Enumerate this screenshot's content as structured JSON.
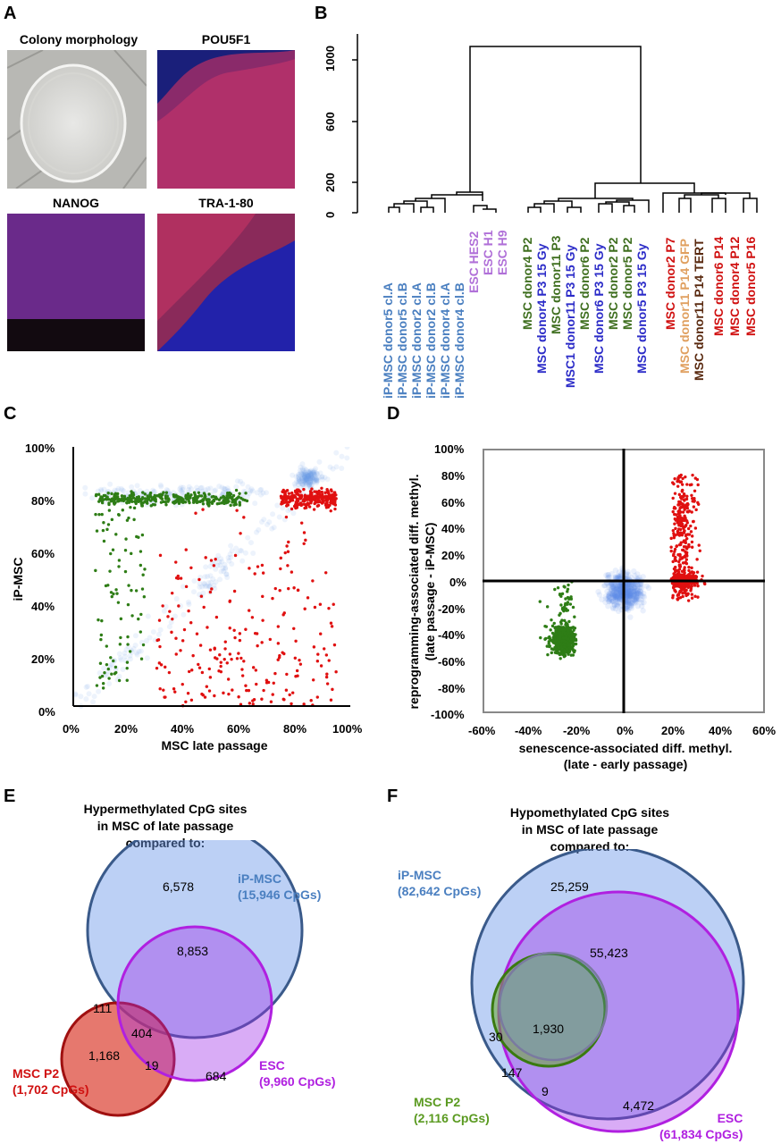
{
  "panels": {
    "A": "A",
    "B": "B",
    "C": "C",
    "D": "D",
    "E": "E",
    "F": "F"
  },
  "panel_a": {
    "titles": [
      "Colony morphology",
      "POU5F1",
      "NANOG",
      "TRA-1-80"
    ]
  },
  "panel_b": {
    "y_ticks": [
      "1000",
      "600",
      "200",
      "0"
    ],
    "leaves": [
      {
        "label": "iP-MSC donor5 cl.A",
        "color": "#4a7fc0"
      },
      {
        "label": "iP-MSC donor5 cl.B",
        "color": "#4a7fc0"
      },
      {
        "label": "iP-MSC donor2 cl.A",
        "color": "#4a7fc0"
      },
      {
        "label": "iP-MSC donor2 cl.B",
        "color": "#4a7fc0"
      },
      {
        "label": "iP-MSC donor4 cl.A",
        "color": "#4a7fc0"
      },
      {
        "label": "iP-MSC donor4 cl.B",
        "color": "#4a7fc0"
      },
      {
        "label": "ESC HES2",
        "color": "#b070d8"
      },
      {
        "label": "ESC H1",
        "color": "#b070d8"
      },
      {
        "label": "ESC H9",
        "color": "#b070d8"
      },
      {
        "label": "MSC donor4 P2",
        "color": "#3f6f1f"
      },
      {
        "label": "MSC donor4 P3 15 Gy",
        "color": "#2c2cc8"
      },
      {
        "label": "MSC donor11 P3",
        "color": "#3f6f1f"
      },
      {
        "label": "MSC1 donor11 P3 15 Gy",
        "color": "#2c2cc8"
      },
      {
        "label": "MSC donor6 P2",
        "color": "#3f6f1f"
      },
      {
        "label": "MSC donor6 P3 15 Gy",
        "color": "#2c2cc8"
      },
      {
        "label": "MSC donor2 P2",
        "color": "#3f6f1f"
      },
      {
        "label": "MSC donor5 P2",
        "color": "#3f6f1f"
      },
      {
        "label": "MSC donor5 P3 15 Gy",
        "color": "#2c2cc8"
      },
      {
        "label": "MSC donor2 P7",
        "color": "#d01010"
      },
      {
        "label": "MSC donor11 P14 GFP",
        "color": "#e0a060"
      },
      {
        "label": "MSC donor11 P14 TERT",
        "color": "#5a2a10"
      },
      {
        "label": "MSC donor6 P14",
        "color": "#d01010"
      },
      {
        "label": "MSC donor4 P12",
        "color": "#d01010"
      },
      {
        "label": "MSC donor5 P16",
        "color": "#d01010"
      }
    ]
  },
  "panel_c": {
    "chart_data": {
      "type": "scatter",
      "xlabel": "MSC late passage",
      "ylabel": "iP-MSC",
      "x_ticks": [
        "0%",
        "20%",
        "40%",
        "60%",
        "80%",
        "100%"
      ],
      "y_ticks": [
        "100%",
        "80%",
        "60%",
        "40%",
        "20%",
        "0%"
      ],
      "xlim": [
        0,
        100
      ],
      "ylim": [
        0,
        100
      ],
      "series": [
        {
          "color": "#2e7d16"
        },
        {
          "color": "#e01010"
        }
      ]
    }
  },
  "panel_d": {
    "chart_data": {
      "type": "scatter",
      "xlabel": "senescence-associated diff. methyl.",
      "xlabel2": "(late - early passage)",
      "ylabel": "reprogramming-associated diff. methyl.",
      "ylabel2": "(late passage - iP-MSC)",
      "x_ticks": [
        "-60%",
        "-40%",
        "-20%",
        "0%",
        "20%",
        "40%",
        "60%"
      ],
      "y_ticks": [
        "100%",
        "80%",
        "60%",
        "40%",
        "20%",
        "0%",
        "-20%",
        "-40%",
        "-60%",
        "-80%",
        "-100%"
      ],
      "xlim": [
        -60,
        60
      ],
      "ylim": [
        -100,
        100
      ],
      "series": [
        {
          "color": "#2e7d16"
        },
        {
          "color": "#e01010"
        }
      ]
    }
  },
  "panel_e": {
    "title": [
      "Hypermethylated CpG sites",
      "in MSC of late passage",
      "compared to:"
    ],
    "sets": [
      {
        "name": "iP-MSC",
        "count": "(15,946 CpGs)",
        "color": "#4a7fc0"
      },
      {
        "name": "MSC P2",
        "count": "(1,702 CpGs)",
        "color": "#d01010"
      },
      {
        "name": "ESC",
        "count": "(9,960 CpGs)",
        "color": "#b020e0"
      }
    ],
    "regions": [
      "6,578",
      "8,853",
      "111",
      "404",
      "1,168",
      "19",
      "684"
    ]
  },
  "panel_f": {
    "title": [
      "Hypomethylated CpG sites",
      "in MSC of late passage",
      "compared to:"
    ],
    "sets": [
      {
        "name": "iP-MSC",
        "count": "(82,642 CpGs)",
        "color": "#4a7fc0"
      },
      {
        "name": "MSC P2",
        "count": "(2,116 CpGs)",
        "color": "#5a9a20"
      },
      {
        "name": "ESC",
        "count": "(61,834 CpGs)",
        "color": "#b020e0"
      }
    ],
    "regions": [
      "25,259",
      "55,423",
      "1,930",
      "30",
      "147",
      "9",
      "4,472"
    ]
  }
}
